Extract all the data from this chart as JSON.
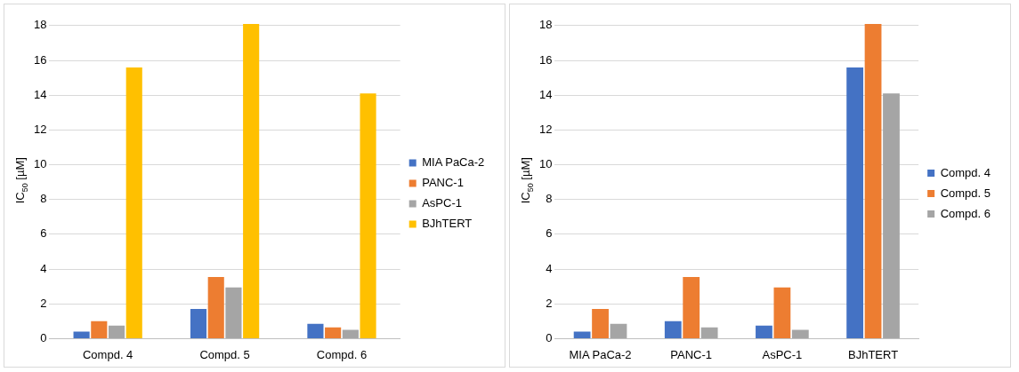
{
  "chart_data": [
    {
      "type": "bar",
      "ylabel": "IC$_{50}$ [µM]",
      "categories": [
        "Compd. 4",
        "Compd. 5",
        "Compd. 6"
      ],
      "series": [
        {
          "name": "MIA PaCa-2",
          "color": "#4472c4",
          "values": [
            0.4,
            1.7,
            0.85
          ]
        },
        {
          "name": "PANC-1",
          "color": "#ed7d31",
          "values": [
            1.0,
            3.55,
            0.65
          ]
        },
        {
          "name": "AsPC-1",
          "color": "#a5a5a5",
          "values": [
            0.75,
            2.95,
            0.5
          ]
        },
        {
          "name": "BJhTERT",
          "color": "#ffc000",
          "values": [
            15.6,
            18.1,
            14.1
          ]
        }
      ],
      "ylim": [
        0,
        18.2
      ],
      "yticks": [
        0,
        2,
        4,
        6,
        8,
        10,
        12,
        14,
        16,
        18
      ],
      "grid": "y",
      "legend": "right"
    },
    {
      "type": "bar",
      "ylabel": "IC$_{50}$ [µM]",
      "categories": [
        "MIA PaCa-2",
        "PANC-1",
        "AsPC-1",
        "BJhTERT"
      ],
      "series": [
        {
          "name": "Compd. 4",
          "color": "#4472c4",
          "values": [
            0.4,
            1.0,
            0.75,
            15.6
          ]
        },
        {
          "name": "Compd. 5",
          "color": "#ed7d31",
          "values": [
            1.7,
            3.55,
            2.95,
            18.1
          ]
        },
        {
          "name": "Compd. 6",
          "color": "#a5a5a5",
          "values": [
            0.85,
            0.65,
            0.5,
            14.1
          ]
        }
      ],
      "ylim": [
        0,
        18.2
      ],
      "yticks": [
        0,
        2,
        4,
        6,
        8,
        10,
        12,
        14,
        16,
        18
      ],
      "grid": "y",
      "legend": "right"
    }
  ]
}
